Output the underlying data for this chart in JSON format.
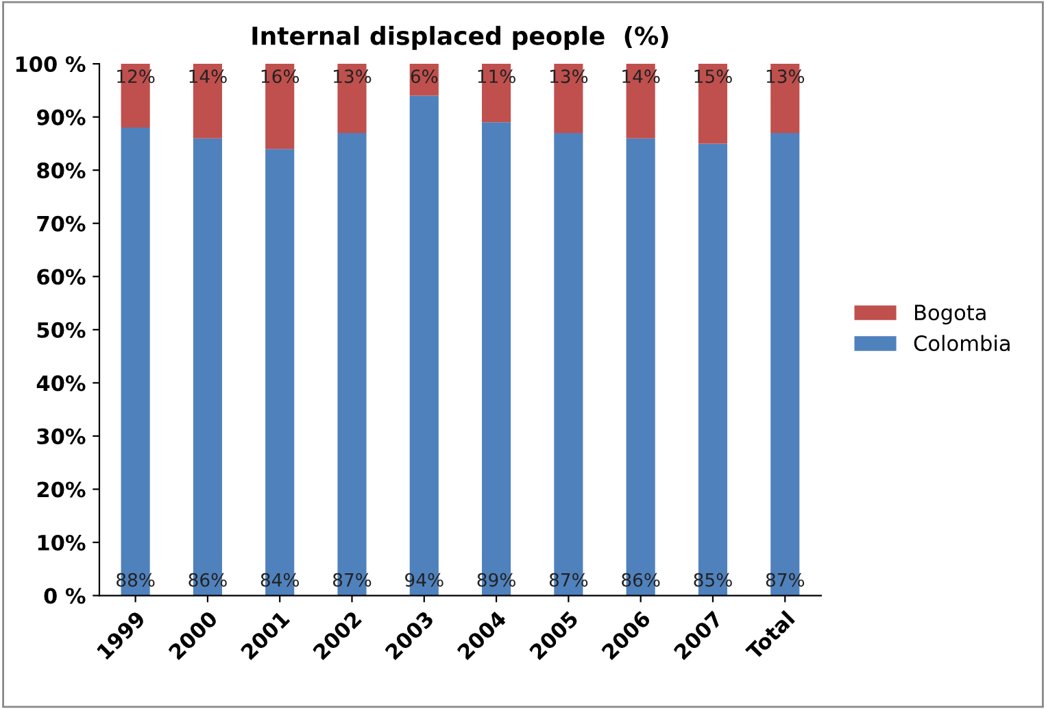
{
  "chart_data": {
    "type": "bar",
    "title": "Internal displaced people  (%)",
    "stacked": true,
    "categories": [
      "1999",
      "2000",
      "2001",
      "2002",
      "2003",
      "2004",
      "2005",
      "2006",
      "2007",
      "Total"
    ],
    "series": [
      {
        "name": "Colombia",
        "color": "#4f81bd",
        "values": [
          88,
          86,
          84,
          87,
          94,
          89,
          87,
          86,
          85,
          87
        ],
        "value_labels": [
          "88%",
          "86%",
          "84%",
          "87%",
          "94%",
          "89%",
          "87%",
          "86%",
          "85%",
          "87%"
        ]
      },
      {
        "name": "Bogota",
        "color": "#c0504d",
        "values": [
          12,
          14,
          16,
          13,
          6,
          11,
          13,
          14,
          15,
          13
        ],
        "value_labels": [
          "12%",
          "14%",
          "16%",
          "13%",
          "6%",
          "11%",
          "13%",
          "14%",
          "15%",
          "13%"
        ]
      }
    ],
    "ylim": [
      0,
      100
    ],
    "yticks": [
      {
        "value": 0,
        "label": "0 %"
      },
      {
        "value": 10,
        "label": "10%"
      },
      {
        "value": 20,
        "label": "20%"
      },
      {
        "value": 30,
        "label": "30%"
      },
      {
        "value": 40,
        "label": "40%"
      },
      {
        "value": 50,
        "label": "50%"
      },
      {
        "value": 60,
        "label": "60%"
      },
      {
        "value": 70,
        "label": "70%"
      },
      {
        "value": 80,
        "label": "80%"
      },
      {
        "value": 90,
        "label": "90%"
      },
      {
        "value": 100,
        "label": "100 %"
      }
    ],
    "grid": false,
    "legend": "right"
  }
}
